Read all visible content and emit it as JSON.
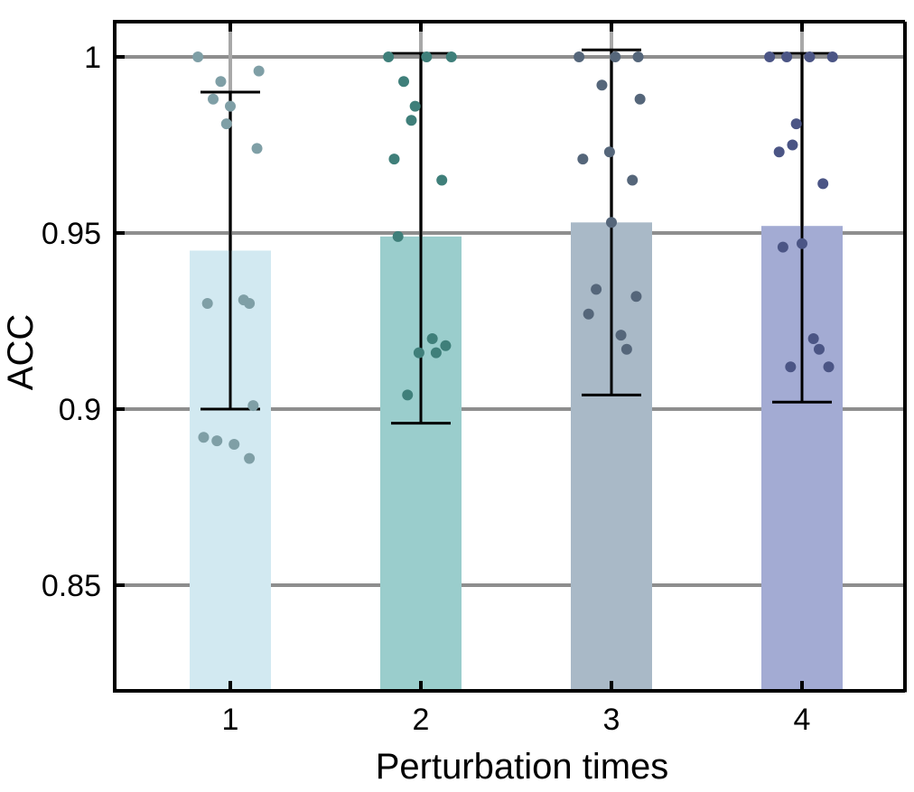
{
  "chart_data": {
    "type": "bar",
    "title": "",
    "xlabel": "Perturbation times",
    "ylabel": "ACC",
    "categories": [
      "1",
      "2",
      "3",
      "4"
    ],
    "ylim": [
      0.82,
      1.01
    ],
    "yticks": [
      0.85,
      0.9,
      0.95,
      1
    ],
    "ytick_labels": [
      "0.85",
      "0.9",
      "0.95",
      "1"
    ],
    "grid": true,
    "values": [
      0.945,
      0.949,
      0.953,
      0.952
    ],
    "error_bars": [
      {
        "low": 0.9,
        "high": 0.99
      },
      {
        "low": 0.896,
        "high": 1.001
      },
      {
        "low": 0.904,
        "high": 1.002
      },
      {
        "low": 0.902,
        "high": 1.001
      }
    ],
    "bar_colors": [
      "#d2e9f1",
      "#9acdcc",
      "#a9b9c7",
      "#a3abd3"
    ],
    "point_colors": [
      "#7f9fa6",
      "#3f7f7a",
      "#55667a",
      "#4b5585"
    ],
    "points": [
      [
        {
          "x": -0.17,
          "y": 1.0
        },
        {
          "x": -0.05,
          "y": 0.993
        },
        {
          "x": -0.09,
          "y": 0.988
        },
        {
          "x": 0.0,
          "y": 0.986
        },
        {
          "x": -0.02,
          "y": 0.981
        },
        {
          "x": 0.15,
          "y": 0.996
        },
        {
          "x": 0.14,
          "y": 0.974
        },
        {
          "x": -0.12,
          "y": 0.93
        },
        {
          "x": 0.1,
          "y": 0.93
        },
        {
          "x": 0.07,
          "y": 0.931
        },
        {
          "x": 0.12,
          "y": 0.901
        },
        {
          "x": -0.14,
          "y": 0.892
        },
        {
          "x": -0.07,
          "y": 0.891
        },
        {
          "x": 0.02,
          "y": 0.89
        },
        {
          "x": 0.1,
          "y": 0.886
        }
      ],
      [
        {
          "x": -0.17,
          "y": 1.0
        },
        {
          "x": 0.03,
          "y": 1.0
        },
        {
          "x": 0.16,
          "y": 1.0
        },
        {
          "x": -0.09,
          "y": 0.993
        },
        {
          "x": -0.03,
          "y": 0.986
        },
        {
          "x": -0.05,
          "y": 0.982
        },
        {
          "x": -0.14,
          "y": 0.971
        },
        {
          "x": 0.11,
          "y": 0.965
        },
        {
          "x": -0.12,
          "y": 0.949
        },
        {
          "x": 0.06,
          "y": 0.92
        },
        {
          "x": 0.13,
          "y": 0.918
        },
        {
          "x": -0.01,
          "y": 0.916
        },
        {
          "x": 0.08,
          "y": 0.916
        },
        {
          "x": -0.07,
          "y": 0.904
        }
      ],
      [
        {
          "x": -0.17,
          "y": 1.0
        },
        {
          "x": 0.02,
          "y": 1.0
        },
        {
          "x": 0.14,
          "y": 1.0
        },
        {
          "x": -0.05,
          "y": 0.992
        },
        {
          "x": 0.15,
          "y": 0.988
        },
        {
          "x": -0.01,
          "y": 0.973
        },
        {
          "x": -0.15,
          "y": 0.971
        },
        {
          "x": 0.11,
          "y": 0.965
        },
        {
          "x": 0.0,
          "y": 0.953
        },
        {
          "x": -0.08,
          "y": 0.934
        },
        {
          "x": 0.13,
          "y": 0.932
        },
        {
          "x": -0.12,
          "y": 0.927
        },
        {
          "x": 0.05,
          "y": 0.921
        },
        {
          "x": 0.08,
          "y": 0.917
        }
      ],
      [
        {
          "x": -0.17,
          "y": 1.0
        },
        {
          "x": -0.08,
          "y": 1.0
        },
        {
          "x": 0.04,
          "y": 1.0
        },
        {
          "x": 0.16,
          "y": 1.0
        },
        {
          "x": -0.03,
          "y": 0.981
        },
        {
          "x": -0.05,
          "y": 0.975
        },
        {
          "x": -0.12,
          "y": 0.973
        },
        {
          "x": 0.11,
          "y": 0.964
        },
        {
          "x": 0.0,
          "y": 0.947
        },
        {
          "x": -0.1,
          "y": 0.946
        },
        {
          "x": 0.06,
          "y": 0.92
        },
        {
          "x": 0.09,
          "y": 0.917
        },
        {
          "x": -0.06,
          "y": 0.912
        },
        {
          "x": 0.14,
          "y": 0.912
        }
      ]
    ]
  }
}
